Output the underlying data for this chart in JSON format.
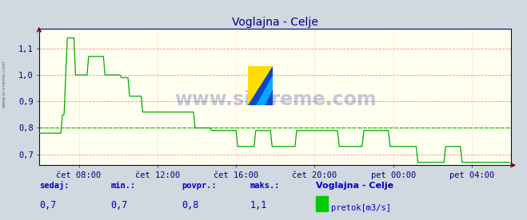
{
  "title": "Voglajna - Celje",
  "bg_color": "#d0d8e0",
  "plot_bg_color": "#fffff0",
  "grid_color_h": "#ff8888",
  "grid_color_v": "#ffbbbb",
  "avg_line_color": "#00cc00",
  "line_color": "#00aa00",
  "xlim": [
    0,
    288
  ],
  "ylim": [
    0.66,
    1.175
  ],
  "yticks": [
    0.7,
    0.8,
    0.9,
    1.0,
    1.1
  ],
  "ytick_labels": [
    "0,7",
    "0,8",
    "0,9",
    "1,0",
    "1,1"
  ],
  "xtick_positions": [
    24,
    72,
    120,
    168,
    216,
    264
  ],
  "xtick_labels": [
    "čet 08:00",
    "čet 12:00",
    "čet 16:00",
    "čet 20:00",
    "pet 00:00",
    "pet 04:00"
  ],
  "avg_value": 0.8,
  "watermark": "www.si-vreme.com",
  "sidebar_text": "www.si-vreme.com",
  "footer_labels": [
    "sedaj:",
    "min.:",
    "povpr.:",
    "maks.:"
  ],
  "footer_values": [
    "0,7",
    "0,7",
    "0,8",
    "1,1"
  ],
  "footer_station": "Voglajna - Celje",
  "footer_legend_label": "pretok[m3/s]",
  "footer_legend_color": "#00cc00",
  "title_color": "#000080",
  "axis_color": "#000080",
  "tick_color": "#000080",
  "footer_label_color": "#0000cc",
  "footer_value_color": "#0000cc",
  "arrow_color": "#880000",
  "logo_yellow": "#ffdd00",
  "logo_blue": "#1144cc",
  "logo_cyan": "#00aaff"
}
